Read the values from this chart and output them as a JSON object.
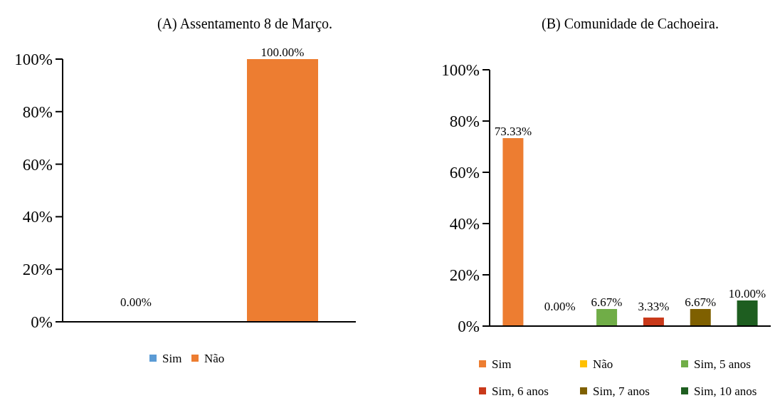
{
  "chart_data": [
    {
      "type": "bar",
      "title": "(A) Assentamento 8 de Março.",
      "categories": [
        null,
        null
      ],
      "series": [
        {
          "name": "Sim",
          "color": "#5b9bd5",
          "values": [
            0,
            null
          ],
          "value_labels": [
            "0.00%",
            null
          ]
        },
        {
          "name": "Não",
          "color": "#ed7d31",
          "values": [
            null,
            100
          ],
          "value_labels": [
            null,
            "100.00%"
          ]
        }
      ],
      "ylim": [
        0,
        100
      ],
      "yticks": [
        {
          "value": 0,
          "label": "0%"
        },
        {
          "value": 20,
          "label": "20%"
        },
        {
          "value": 40,
          "label": "40%"
        },
        {
          "value": 60,
          "label": "60%"
        },
        {
          "value": 80,
          "label": "80%"
        },
        {
          "value": 100,
          "label": "100%"
        }
      ],
      "grid": false,
      "legend": "bottom"
    },
    {
      "type": "bar",
      "title": "(B) Comunidade de Cachoeira.",
      "categories": [
        null,
        null,
        null,
        null,
        null,
        null
      ],
      "series": [
        {
          "name": "Sim",
          "color": "#ed7d31",
          "values": [
            73.33,
            null,
            null,
            null,
            null,
            null
          ],
          "value_labels": [
            "73.33%",
            null,
            null,
            null,
            null,
            null
          ]
        },
        {
          "name": "Não",
          "color": "#ffc000",
          "values": [
            null,
            0,
            null,
            null,
            null,
            null
          ],
          "value_labels": [
            null,
            "0.00%",
            null,
            null,
            null,
            null
          ]
        },
        {
          "name": "Sim, 5 anos",
          "color": "#70ad47",
          "values": [
            null,
            null,
            6.67,
            null,
            null,
            null
          ],
          "value_labels": [
            null,
            null,
            "6.67%",
            null,
            null,
            null
          ]
        },
        {
          "name": "Sim, 6 anos",
          "color": "#c9391a",
          "values": [
            null,
            null,
            null,
            3.33,
            null,
            null
          ],
          "value_labels": [
            null,
            null,
            null,
            "3.33%",
            null,
            null
          ]
        },
        {
          "name": "Sim, 7 anos",
          "color": "#7f6000",
          "values": [
            null,
            null,
            null,
            null,
            6.67,
            null
          ],
          "value_labels": [
            null,
            null,
            null,
            null,
            "6.67%",
            null
          ]
        },
        {
          "name": "Sim, 10 anos",
          "color": "#1e5e20",
          "values": [
            null,
            null,
            null,
            null,
            null,
            10
          ],
          "value_labels": [
            null,
            null,
            null,
            null,
            null,
            "10.00%"
          ]
        }
      ],
      "ylim": [
        0,
        100
      ],
      "yticks": [
        {
          "value": 0,
          "label": "0%"
        },
        {
          "value": 20,
          "label": "20%"
        },
        {
          "value": 40,
          "label": "40%"
        },
        {
          "value": 60,
          "label": "60%"
        },
        {
          "value": 80,
          "label": "80%"
        },
        {
          "value": 100,
          "label": "100%"
        }
      ],
      "grid": false,
      "legend": "bottom"
    }
  ]
}
